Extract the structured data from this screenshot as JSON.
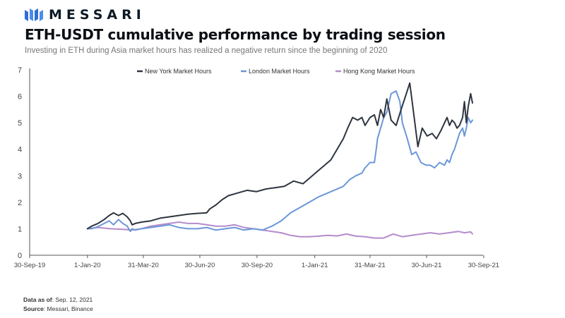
{
  "brand": {
    "name": "MESSARI",
    "colors": {
      "navy": "#0d1a26",
      "blue": "#3a7bd5"
    }
  },
  "header": {
    "title": "ETH-USDT cumulative performance by trading session",
    "subtitle": "Investing in ETH during Asia market hours has realized a negative return since the beginning of 2020"
  },
  "footer": {
    "data_as_of_label": "Data as of",
    "data_as_of_value": ": Sep. 12, 2021",
    "source_label": "Source",
    "source_value": ": Messari, Binance"
  },
  "chart_data": {
    "type": "line",
    "title": "ETH-USDT cumulative performance by trading session",
    "xlabel": "",
    "ylabel": "",
    "ylim": [
      0,
      7
    ],
    "yticks": [
      0,
      1,
      2,
      3,
      4,
      5,
      6,
      7
    ],
    "x_domain": [
      0,
      730
    ],
    "x_ticks": [
      {
        "x": 0,
        "label": "30-Sep-19"
      },
      {
        "x": 93,
        "label": "1-Jan-20"
      },
      {
        "x": 183,
        "label": "31-Mar-20"
      },
      {
        "x": 274,
        "label": "30-Jun-20"
      },
      {
        "x": 366,
        "label": "30-Sep-20"
      },
      {
        "x": 459,
        "label": "1-Jan-21"
      },
      {
        "x": 548,
        "label": "31-Mar-21"
      },
      {
        "x": 639,
        "label": "30-Jun-21"
      },
      {
        "x": 731,
        "label": "30-Sep-21"
      }
    ],
    "grid": false,
    "legend": "top",
    "series": [
      {
        "name": "New York Market Hours",
        "color": "#2e3540",
        "x": [
          93,
          100,
          110,
          120,
          128,
          135,
          143,
          150,
          157,
          162,
          165,
          170,
          180,
          195,
          210,
          225,
          240,
          255,
          270,
          285,
          290,
          300,
          310,
          320,
          335,
          350,
          365,
          380,
          395,
          410,
          425,
          440,
          455,
          465,
          475,
          485,
          495,
          505,
          512,
          520,
          528,
          535,
          540,
          548,
          555,
          560,
          565,
          570,
          575,
          582,
          590,
          598,
          605,
          612,
          618,
          625,
          632,
          640,
          648,
          655,
          662,
          668,
          672,
          676,
          680,
          684,
          688,
          692,
          697,
          700,
          703,
          706,
          710,
          713
        ],
        "y": [
          1.0,
          1.1,
          1.2,
          1.35,
          1.5,
          1.6,
          1.5,
          1.58,
          1.45,
          1.3,
          1.15,
          1.2,
          1.25,
          1.3,
          1.4,
          1.45,
          1.5,
          1.55,
          1.58,
          1.6,
          1.75,
          1.9,
          2.1,
          2.25,
          2.35,
          2.45,
          2.4,
          2.5,
          2.55,
          2.6,
          2.8,
          2.7,
          3.0,
          3.2,
          3.4,
          3.6,
          4.0,
          4.4,
          4.8,
          5.2,
          5.1,
          5.2,
          4.9,
          5.2,
          5.3,
          4.9,
          5.5,
          5.2,
          5.9,
          5.1,
          4.9,
          5.5,
          6.0,
          6.5,
          5.4,
          4.1,
          4.8,
          4.5,
          4.6,
          4.4,
          4.7,
          5.0,
          5.2,
          4.9,
          5.1,
          5.0,
          4.8,
          4.9,
          5.2,
          5.8,
          5.0,
          5.6,
          6.1,
          5.75
        ]
      },
      {
        "name": "London Market Hours",
        "color": "#6b97d8",
        "x": [
          93,
          100,
          110,
          120,
          128,
          135,
          143,
          150,
          157,
          162,
          165,
          170,
          180,
          195,
          210,
          225,
          240,
          255,
          270,
          285,
          300,
          315,
          330,
          345,
          360,
          375,
          390,
          405,
          420,
          435,
          450,
          465,
          480,
          495,
          505,
          515,
          525,
          535,
          540,
          548,
          555,
          558,
          560,
          565,
          570,
          575,
          582,
          590,
          596,
          600,
          608,
          615,
          622,
          630,
          638,
          645,
          652,
          660,
          668,
          672,
          676,
          680,
          684,
          688,
          692,
          697,
          700,
          703,
          706,
          710,
          713
        ],
        "y": [
          1.0,
          1.0,
          1.08,
          1.2,
          1.3,
          1.15,
          1.35,
          1.2,
          1.1,
          0.9,
          1.0,
          0.95,
          1.0,
          1.05,
          1.1,
          1.15,
          1.05,
          1.0,
          1.0,
          1.05,
          0.95,
          1.0,
          1.05,
          0.95,
          1.0,
          0.95,
          1.1,
          1.3,
          1.6,
          1.8,
          2.0,
          2.2,
          2.35,
          2.5,
          2.6,
          2.85,
          3.0,
          3.1,
          3.3,
          3.5,
          3.5,
          4.0,
          4.4,
          4.8,
          5.2,
          5.4,
          6.1,
          6.2,
          5.8,
          5.0,
          4.4,
          3.8,
          3.9,
          3.5,
          3.4,
          3.4,
          3.3,
          3.5,
          3.4,
          3.6,
          3.5,
          3.8,
          4.0,
          4.3,
          4.6,
          4.8,
          4.5,
          4.8,
          5.2,
          5.0,
          5.1
        ]
      },
      {
        "name": "Hong Kong Market Hours",
        "color": "#b58bcc",
        "x": [
          93,
          110,
          130,
          150,
          165,
          180,
          195,
          210,
          225,
          240,
          255,
          270,
          285,
          300,
          315,
          330,
          345,
          360,
          375,
          390,
          405,
          420,
          435,
          450,
          465,
          480,
          495,
          510,
          525,
          540,
          555,
          570,
          585,
          600,
          615,
          630,
          645,
          660,
          675,
          690,
          700,
          710,
          713
        ],
        "y": [
          1.0,
          1.05,
          1.0,
          0.98,
          0.95,
          1.0,
          1.1,
          1.15,
          1.2,
          1.25,
          1.2,
          1.2,
          1.15,
          1.1,
          1.1,
          1.15,
          1.05,
          1.0,
          0.95,
          0.9,
          0.85,
          0.75,
          0.7,
          0.7,
          0.72,
          0.75,
          0.73,
          0.8,
          0.72,
          0.7,
          0.65,
          0.65,
          0.8,
          0.7,
          0.75,
          0.8,
          0.85,
          0.8,
          0.85,
          0.9,
          0.85,
          0.88,
          0.8
        ]
      }
    ]
  }
}
